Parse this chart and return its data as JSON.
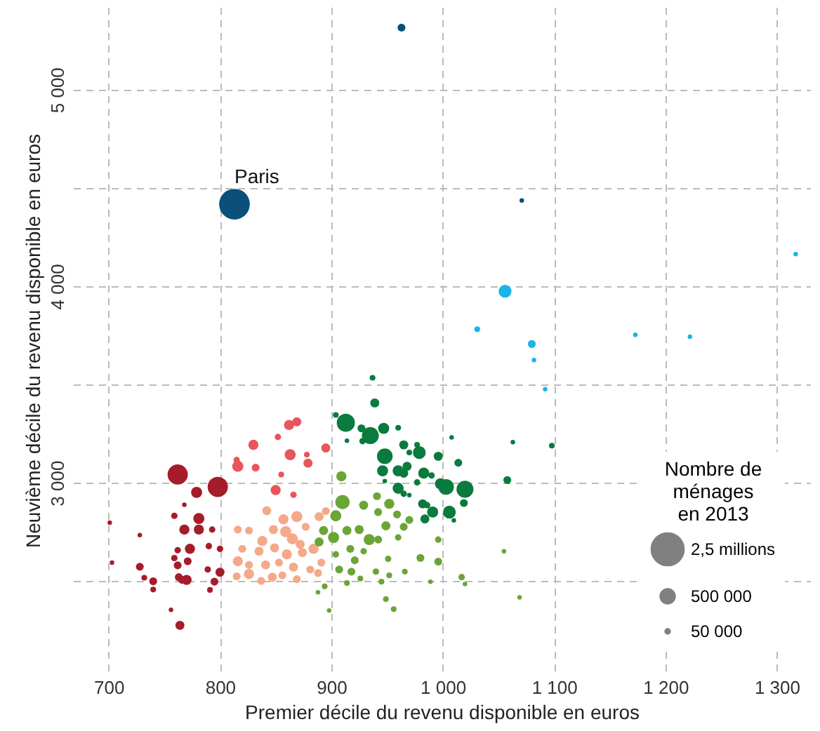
{
  "chart_data": {
    "type": "bubble",
    "xlabel": "Premier décile du revenu disponible en euros",
    "ylabel": "Neuvième décile du revenu disponible en euros",
    "legend_title": "Nombre de ménages en 2013",
    "grid": true,
    "size_legend": [
      {
        "value": 2500000,
        "label": "2,5 millions"
      },
      {
        "value": 500000,
        "label": "500 000"
      },
      {
        "value": 50000,
        "label": "50 000"
      }
    ],
    "xlim": [
      668,
      1330
    ],
    "ylim": [
      2030,
      5420
    ],
    "xticks": [
      700,
      800,
      900,
      {
        "value": 1000,
        "label": "1 000"
      },
      {
        "value": 1100,
        "label": "1 100"
      },
      {
        "value": 1200,
        "label": "1 200"
      },
      {
        "value": 1300,
        "label": "1 300"
      }
    ],
    "yticks": [
      {
        "value": 2500,
        "label": null
      },
      {
        "value": 3000,
        "label": "3 000"
      },
      {
        "value": 3500,
        "label": null
      },
      {
        "value": 4000,
        "label": "4 000"
      },
      {
        "value": 4500,
        "label": null
      },
      {
        "value": 5000,
        "label": "5 000"
      }
    ],
    "annotations": [
      {
        "text": "Paris",
        "x": 813,
        "y": 4417
      }
    ],
    "series": [
      {
        "color": "#a51c2a",
        "x": [
          762,
          798,
          779,
          768,
          759,
          781,
          768,
          781,
          793,
          701,
          728,
          703,
          762,
          773,
          790,
          800,
          759,
          771,
          762,
          728,
          789,
          800,
          763,
          770,
          766,
          732,
          740,
          740,
          795,
          791,
          756,
          764
        ],
        "values": [
          3042,
          2979,
          2951,
          2888,
          2832,
          2818,
          2762,
          2762,
          2762,
          2797,
          2734,
          2594,
          2657,
          2664,
          2678,
          2664,
          2617,
          2601,
          2580,
          2573,
          2559,
          2545,
          2520,
          2506,
          2506,
          2517,
          2499,
          2457,
          2497,
          2455,
          2354,
          2275
        ],
        "sizes": [
          1000000,
          1000000,
          300000,
          50000,
          100000,
          300000,
          250000,
          250000,
          100000,
          50000,
          50000,
          50000,
          100000,
          250000,
          100000,
          100000,
          100000,
          150000,
          150000,
          150000,
          100000,
          200000,
          150000,
          250000,
          150000,
          80000,
          150000,
          80000,
          150000,
          80000,
          50000,
          200000
        ]
      },
      {
        "color": "#e8555a",
        "x": [
          862,
          869,
          852,
          830,
          815,
          816,
          832,
          863,
          878,
          879,
          895,
          855,
          850,
          866
        ],
        "values": [
          3294,
          3310,
          3233,
          3193,
          3116,
          3084,
          3077,
          3143,
          3143,
          3100,
          3177,
          3042,
          2963,
          2939
        ],
        "sizes": [
          250000,
          200000,
          100000,
          250000,
          100000,
          300000,
          150000,
          300000,
          80000,
          200000,
          200000,
          80000,
          250000,
          100000
        ]
      },
      {
        "color": "#f4a98a",
        "x": [
          842,
          857,
          869,
          889,
          895,
          816,
          826,
          848,
          859,
          877,
          838,
          849,
          865,
          872,
          884,
          820,
          835,
          860,
          874,
          816,
          826,
          841,
          853,
          866,
          881,
          891,
          815,
          826,
          837,
          847,
          856,
          869,
          888
        ],
        "values": [
          2858,
          2814,
          2828,
          2828,
          2856,
          2762,
          2757,
          2762,
          2751,
          2776,
          2704,
          2669,
          2715,
          2687,
          2664,
          2664,
          2652,
          2636,
          2645,
          2601,
          2582,
          2582,
          2594,
          2571,
          2559,
          2594,
          2524,
          2536,
          2501,
          2520,
          2529,
          2510,
          2541
        ],
        "sizes": [
          200000,
          250000,
          300000,
          200000,
          150000,
          150000,
          150000,
          200000,
          300000,
          150000,
          250000,
          200000,
          300000,
          200000,
          250000,
          150000,
          200000,
          250000,
          200000,
          250000,
          150000,
          200000,
          150000,
          200000,
          150000,
          150000,
          150000,
          250000,
          150000,
          200000,
          150000,
          150000,
          150000
        ]
      },
      {
        "color": "#6aa535",
        "x": [
          909,
          910,
          929,
          941,
          952,
          942,
          959,
          970,
          904,
          914,
          893,
          902,
          925,
          934,
          949,
          965,
          942,
          960,
          996,
          980,
          996,
          904,
          917,
          921,
          929,
          951,
          907,
          918,
          940,
          952,
          966,
          914,
          926,
          945,
          894,
          888,
          949,
          956,
          898,
          989,
          1017,
          1020,
          1055,
          1069,
          889
        ],
        "values": [
          3033,
          2902,
          2886,
          2932,
          2893,
          2851,
          2839,
          2811,
          2832,
          2757,
          2757,
          2722,
          2762,
          2711,
          2781,
          2776,
          2711,
          2722,
          2711,
          2618,
          2599,
          2636,
          2664,
          2606,
          2652,
          2613,
          2559,
          2548,
          2548,
          2529,
          2548,
          2490,
          2513,
          2497,
          2473,
          2443,
          2408,
          2357,
          2350,
          2497,
          2520,
          2485,
          2652,
          2417,
          2699
        ],
        "sizes": [
          250000,
          500000,
          200000,
          150000,
          250000,
          150000,
          150000,
          150000,
          300000,
          200000,
          200000,
          300000,
          200000,
          300000,
          200000,
          150000,
          150000,
          100000,
          100000,
          150000,
          150000,
          100000,
          150000,
          150000,
          100000,
          100000,
          150000,
          150000,
          100000,
          80000,
          80000,
          80000,
          80000,
          80000,
          80000,
          50000,
          80000,
          80000,
          50000,
          50000,
          100000,
          50000,
          50000,
          50000,
          200000
        ]
      },
      {
        "color": "#0a7a3e",
        "x": [
          937,
          939,
          904,
          913,
          927,
          935,
          928,
          947,
          960,
          914,
          965,
          977,
          979,
          948,
          970,
          996,
          1014,
          1008,
          946,
          960,
          968,
          965,
          983,
          990,
          948,
          977,
          998,
          1003,
          1020,
          960,
          965,
          970,
          982,
          986,
          991,
          1006,
          1019,
          984,
          1010,
          1058,
          1063,
          1098
        ],
        "values": [
          3534,
          3406,
          3345,
          3305,
          3277,
          3240,
          3212,
          3277,
          3280,
          3214,
          3193,
          3193,
          3154,
          3135,
          3154,
          3135,
          3102,
          3231,
          3061,
          3061,
          3084,
          3049,
          3049,
          3037,
          3009,
          3002,
          2995,
          2979,
          2967,
          2972,
          2944,
          2937,
          2893,
          2886,
          2851,
          2851,
          2897,
          2816,
          2809,
          3014,
          3207,
          3189
        ],
        "sizes": [
          80000,
          200000,
          80000,
          800000,
          150000,
          700000,
          100000,
          300000,
          80000,
          50000,
          200000,
          80000,
          400000,
          600000,
          80000,
          200000,
          150000,
          50000,
          300000,
          300000,
          200000,
          200000,
          300000,
          100000,
          50000,
          100000,
          300000,
          600000,
          700000,
          300000,
          100000,
          50000,
          200000,
          100000,
          300000,
          400000,
          150000,
          200000,
          50000,
          150000,
          50000,
          80000
        ]
      },
      {
        "color": "#1ab4e6",
        "x": [
          1056,
          1031,
          1080,
          1173,
          1222,
          1317,
          1082,
          1092
        ],
        "values": [
          3974,
          3781,
          3706,
          3753,
          3743,
          4163,
          3624,
          3476
        ],
        "sizes": [
          400000,
          80000,
          150000,
          50000,
          50000,
          50000,
          50000,
          50000
        ]
      },
      {
        "color": "#0b4f7a",
        "x": [
          813,
          963,
          1071
        ],
        "values": [
          4417,
          5315,
          4436
        ],
        "sizes": [
          2300000,
          150000,
          50000
        ]
      }
    ]
  }
}
